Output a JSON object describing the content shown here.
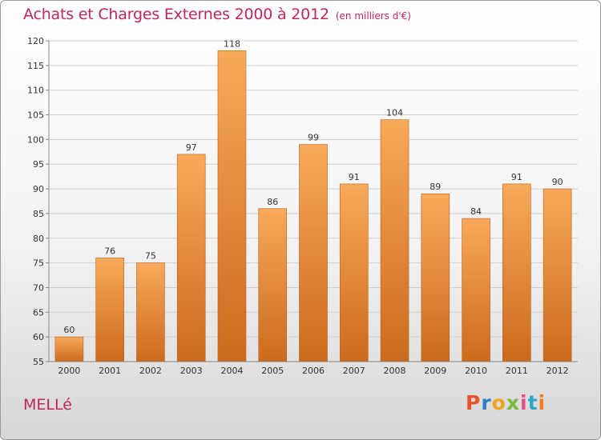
{
  "header": {
    "title": "Achats et Charges Externes 2000 à 2012",
    "unit": "(en milliers d'€)"
  },
  "footer": {
    "commune": "MELLé",
    "logo_letters": [
      "P",
      "r",
      "o",
      "x",
      "i",
      "t",
      "i"
    ],
    "logo_colors": [
      "#e8532b",
      "#2d7fc1",
      "#f0a31c",
      "#7ab93c",
      "#e84b8a",
      "#2aa6c7",
      "#f07d22"
    ]
  },
  "colors": {
    "bar_top": "#f8a95a",
    "bar_bottom": "#cc6a1c",
    "bar_edge": "#b8611a",
    "grid": "#cfcfcf",
    "title": "#c0275a"
  },
  "chart_data": {
    "type": "bar",
    "title": "Achats et Charges Externes 2000 à 2012",
    "subtitle": "(en milliers d'€)",
    "xlabel": "",
    "ylabel": "",
    "categories": [
      "2000",
      "2001",
      "2002",
      "2003",
      "2004",
      "2005",
      "2006",
      "2007",
      "2008",
      "2009",
      "2010",
      "2011",
      "2012"
    ],
    "values": [
      60,
      76,
      75,
      97,
      118,
      86,
      99,
      91,
      104,
      89,
      84,
      91,
      90
    ],
    "ylim": [
      55,
      120
    ],
    "yticks": [
      55,
      60,
      65,
      70,
      75,
      80,
      85,
      90,
      95,
      100,
      105,
      110,
      115,
      120
    ],
    "grid": true,
    "legend": "none"
  }
}
